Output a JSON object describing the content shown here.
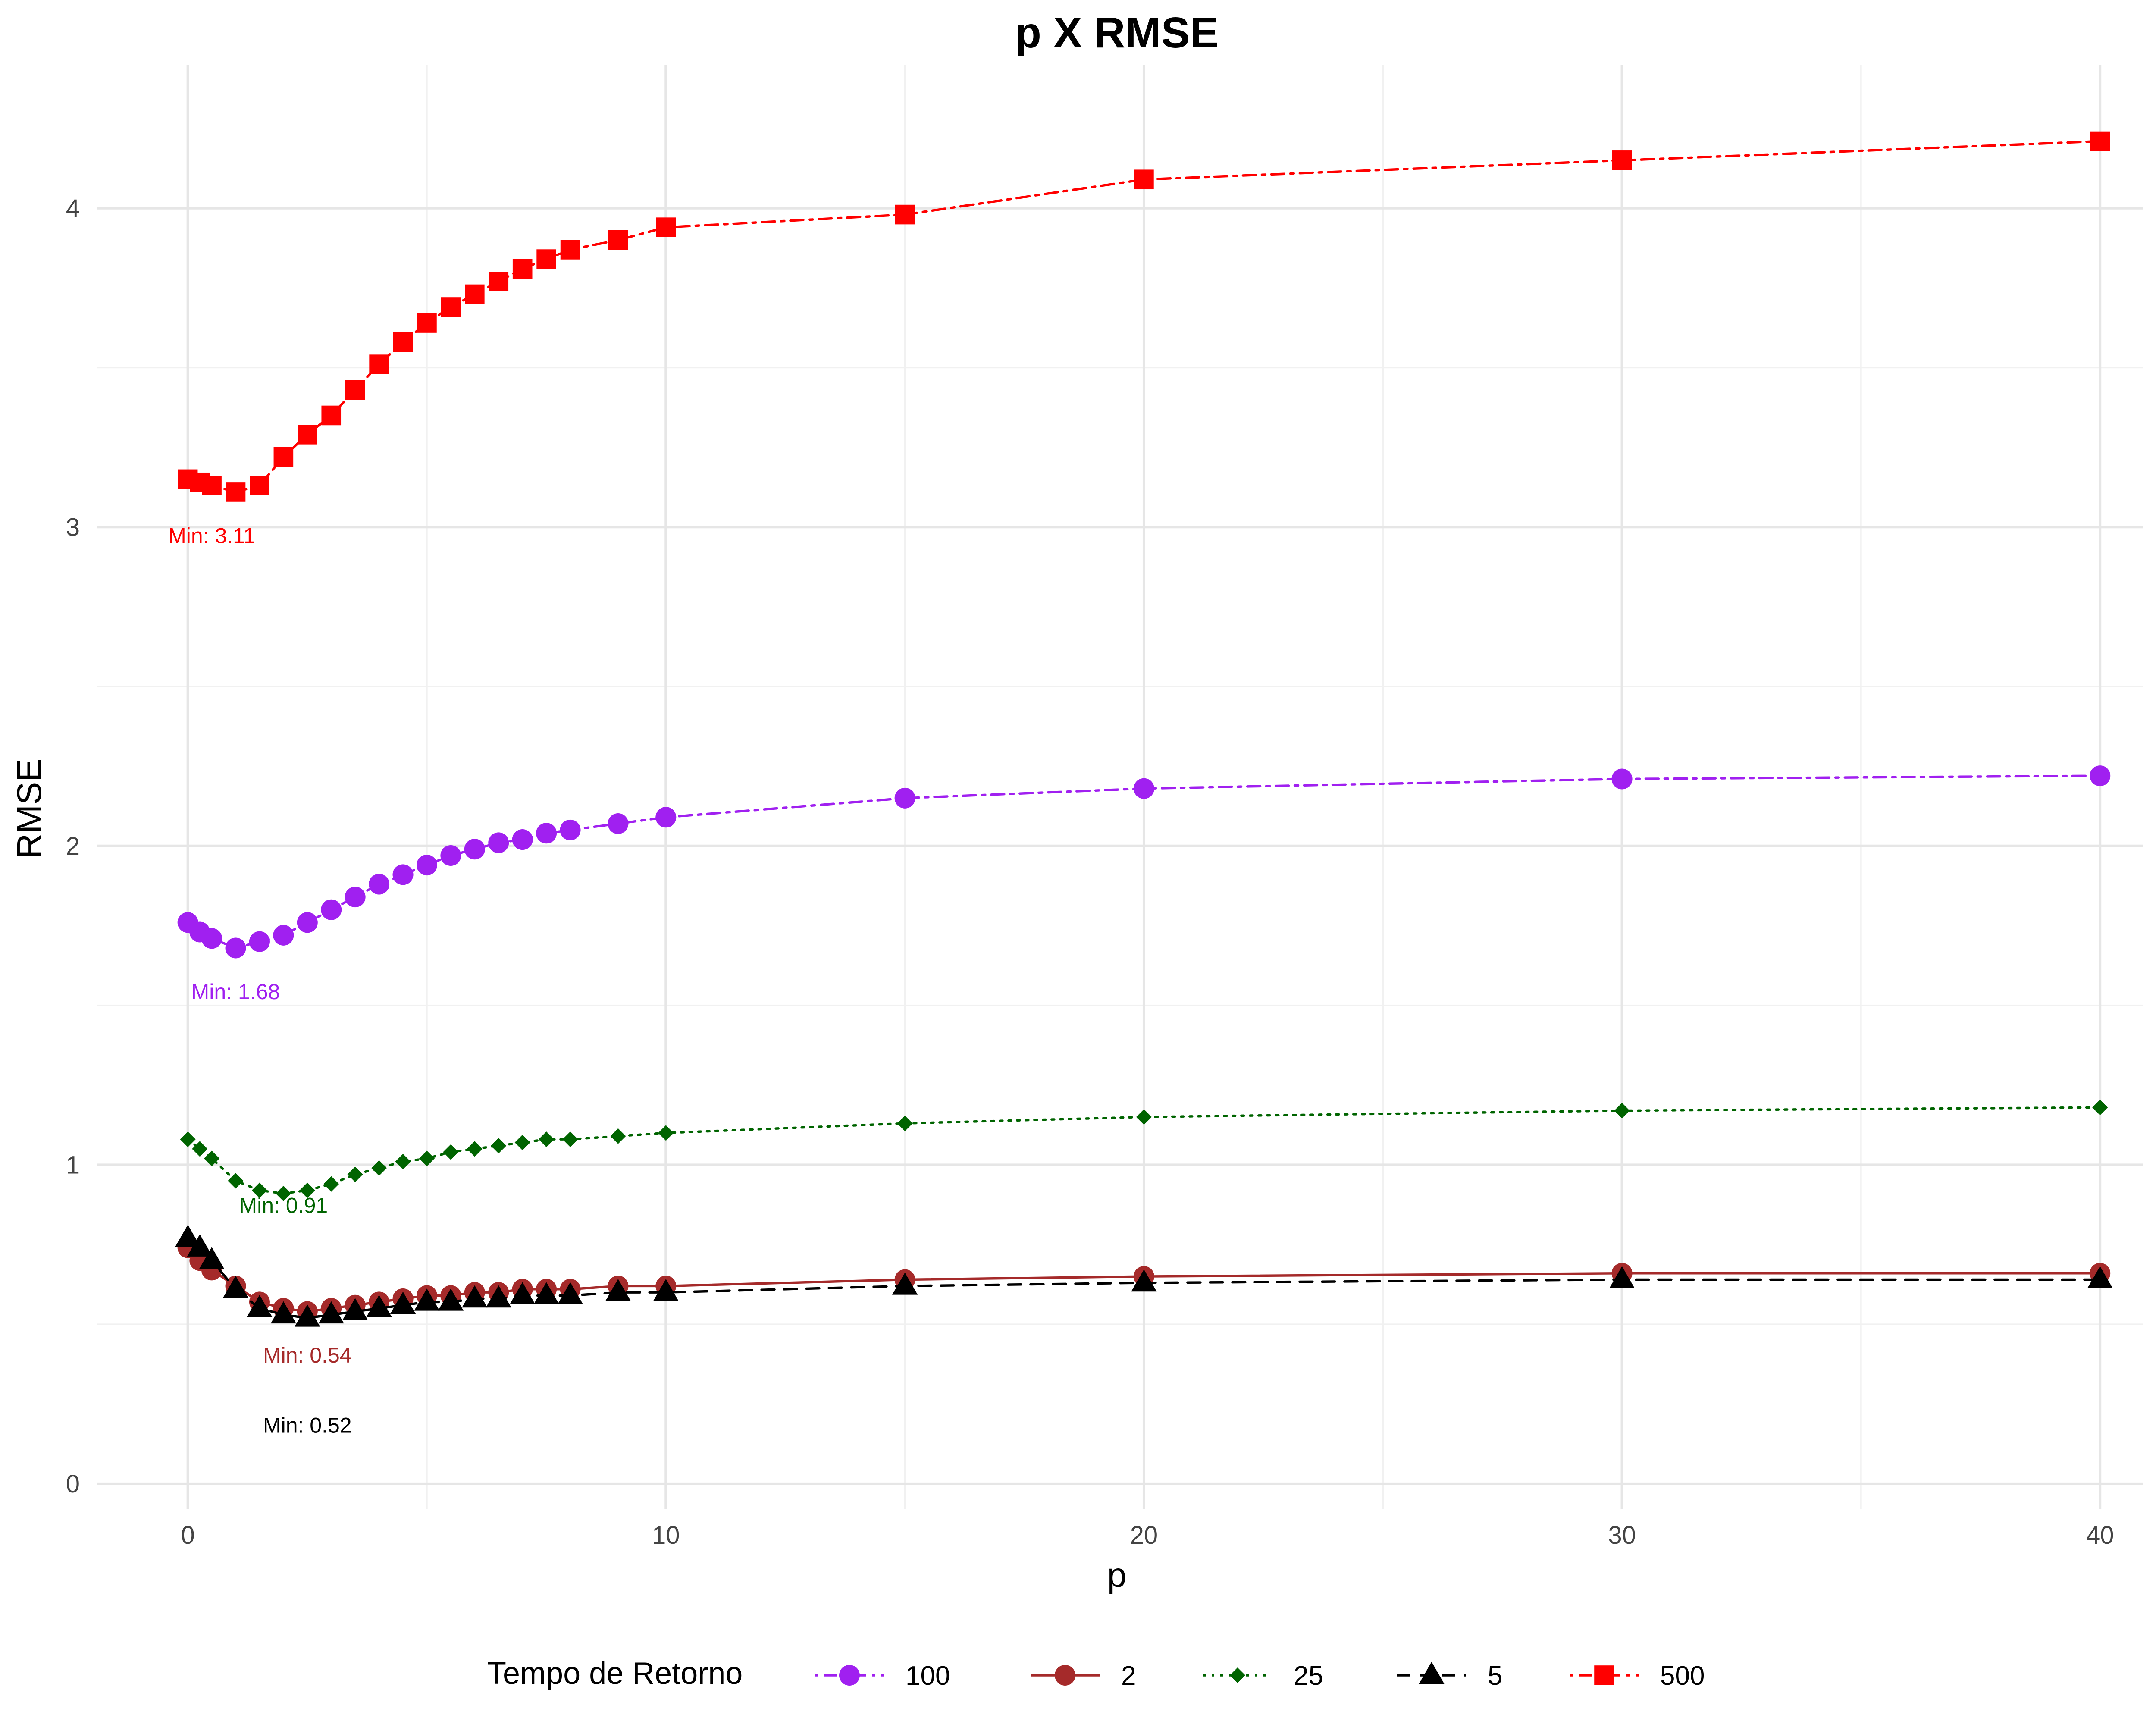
{
  "chart_data": {
    "type": "line",
    "title": "p X RMSE",
    "xlabel": "p",
    "ylabel": "RMSE",
    "xlim": [
      -1.9,
      40.9
    ],
    "ylim": [
      -0.08,
      4.45
    ],
    "x_ticks": [
      0,
      10,
      20,
      30,
      40
    ],
    "y_ticks": [
      0,
      1,
      2,
      3,
      4
    ],
    "x_tick_labels": [
      "0",
      "10",
      "20",
      "30",
      "40"
    ],
    "y_tick_labels": [
      "0",
      "1",
      "2",
      "3",
      "4"
    ],
    "grid": true,
    "legend": {
      "title": "Tempo de Retorno",
      "position": "bottom"
    },
    "x": [
      0,
      0.25,
      0.5,
      1,
      1.5,
      2,
      2.5,
      3,
      3.5,
      4,
      4.5,
      5,
      5.5,
      6,
      6.5,
      7,
      7.5,
      8,
      9,
      10,
      15,
      20,
      30,
      40
    ],
    "series": [
      {
        "name": "100",
        "color": "#A020F0",
        "marker": "circle",
        "line": "dot-dash",
        "values": [
          1.76,
          1.73,
          1.71,
          1.68,
          1.7,
          1.72,
          1.76,
          1.8,
          1.84,
          1.88,
          1.91,
          1.94,
          1.97,
          1.99,
          2.01,
          2.02,
          2.04,
          2.05,
          2.07,
          2.09,
          2.15,
          2.18,
          2.21,
          2.22
        ]
      },
      {
        "name": "2",
        "color": "#A52A2A",
        "marker": "circle",
        "line": "solid",
        "values": [
          0.74,
          0.7,
          0.67,
          0.62,
          0.57,
          0.55,
          0.54,
          0.55,
          0.56,
          0.57,
          0.58,
          0.59,
          0.59,
          0.6,
          0.6,
          0.61,
          0.61,
          0.61,
          0.62,
          0.62,
          0.64,
          0.65,
          0.66,
          0.66
        ]
      },
      {
        "name": "25",
        "color": "#006400",
        "marker": "diamond",
        "line": "dotted",
        "values": [
          1.08,
          1.05,
          1.02,
          0.95,
          0.92,
          0.91,
          0.92,
          0.94,
          0.97,
          0.99,
          1.01,
          1.02,
          1.04,
          1.05,
          1.06,
          1.07,
          1.08,
          1.08,
          1.09,
          1.1,
          1.13,
          1.15,
          1.17,
          1.18
        ]
      },
      {
        "name": "5",
        "color": "#000000",
        "marker": "triangle",
        "line": "dashed",
        "values": [
          0.77,
          0.74,
          0.7,
          0.61,
          0.55,
          0.53,
          0.52,
          0.53,
          0.54,
          0.55,
          0.56,
          0.57,
          0.57,
          0.58,
          0.58,
          0.59,
          0.59,
          0.59,
          0.6,
          0.6,
          0.62,
          0.63,
          0.64,
          0.64
        ]
      },
      {
        "name": "500",
        "color": "#FF0000",
        "marker": "square",
        "line": "dot-dash",
        "values": [
          3.15,
          3.14,
          3.13,
          3.11,
          3.13,
          3.22,
          3.29,
          3.35,
          3.43,
          3.51,
          3.58,
          3.64,
          3.69,
          3.73,
          3.77,
          3.81,
          3.84,
          3.87,
          3.9,
          3.94,
          3.98,
          4.09,
          4.15,
          4.21
        ]
      }
    ],
    "annotations": [
      {
        "text": "Min: 3.11",
        "series": "500",
        "x": 0.5,
        "y": 2.95
      },
      {
        "text": "Min: 1.68",
        "series": "100",
        "x": 1.0,
        "y": 1.52
      },
      {
        "text": "Min: 0.91",
        "series": "25",
        "x": 2.0,
        "y": 0.85
      },
      {
        "text": "Min: 0.54",
        "series": "2",
        "x": 2.5,
        "y": 0.38
      },
      {
        "text": "Min: 0.52",
        "series": "5",
        "x": 2.5,
        "y": 0.16
      }
    ]
  }
}
